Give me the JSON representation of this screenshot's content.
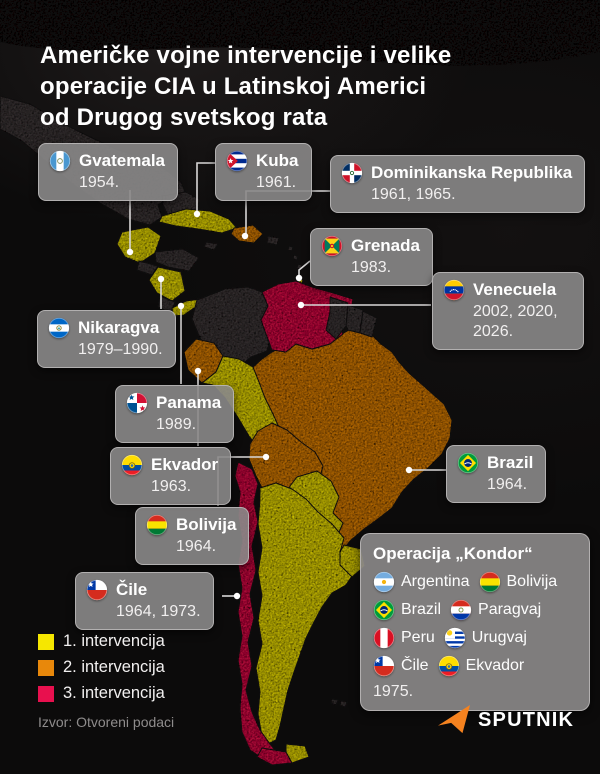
{
  "title": {
    "lines": [
      "Američke vojne intervencije i velike",
      "operacije CIA u Latinskoj Americi",
      "od Drugog svetskog rata"
    ]
  },
  "labels": [
    {
      "id": "gvatemala",
      "country": "Gvatemala",
      "years": "1954.",
      "flag": "gt"
    },
    {
      "id": "kuba",
      "country": "Kuba",
      "years": "1961.",
      "flag": "cu"
    },
    {
      "id": "dominikanska",
      "country": "Dominikanska Republika",
      "years": "1961, 1965.",
      "flag": "do"
    },
    {
      "id": "grenada",
      "country": "Grenada",
      "years": "1983.",
      "flag": "gd"
    },
    {
      "id": "venecuela",
      "country": "Venecuela",
      "years": "2002, 2020, 2026.",
      "flag": "ve"
    },
    {
      "id": "nikaragva",
      "country": "Nikaragva",
      "years": "1979–1990.",
      "flag": "ni"
    },
    {
      "id": "panama",
      "country": "Panama",
      "years": "1989.",
      "flag": "pa"
    },
    {
      "id": "ekvador",
      "country": "Ekvador",
      "years": "1963.",
      "flag": "ec"
    },
    {
      "id": "bolivija",
      "country": "Bolivija",
      "years": "1964.",
      "flag": "bo"
    },
    {
      "id": "brazil",
      "country": "Brazil",
      "years": "1964.",
      "flag": "br"
    },
    {
      "id": "cile",
      "country": "Čile",
      "years": "1964, 1973.",
      "flag": "cl"
    }
  ],
  "kondor": {
    "title": "Operacija „Kondor“",
    "year": "1975.",
    "countries": [
      {
        "name": "Argentina",
        "flag": "ar"
      },
      {
        "name": "Bolivija",
        "flag": "bo"
      },
      {
        "name": "Brazil",
        "flag": "br"
      },
      {
        "name": "Paragvaj",
        "flag": "py"
      },
      {
        "name": "Peru",
        "flag": "pe"
      },
      {
        "name": "Urugvaj",
        "flag": "uy"
      },
      {
        "name": "Čile",
        "flag": "cl"
      },
      {
        "name": "Ekvador",
        "flag": "ec"
      }
    ]
  },
  "legend": {
    "items": [
      {
        "label": "1. intervencija",
        "color": "#f6e700"
      },
      {
        "label": "2. intervencija",
        "color": "#e8880b"
      },
      {
        "label": "3. intervencija",
        "color": "#e8104e"
      }
    ]
  },
  "map": {
    "intervention_colors": {
      "1": "#f6e700",
      "2": "#e8880b",
      "3": "#e8104e",
      "other": "#453e3f"
    },
    "countries": [
      {
        "key": "gvatemala",
        "name": "Gvatemala",
        "level": "1"
      },
      {
        "key": "kuba",
        "name": "Kuba",
        "level": "1"
      },
      {
        "key": "dominikanska",
        "name": "Dominikanska Republika",
        "level": "2"
      },
      {
        "key": "grenada",
        "name": "Grenada",
        "level": "1"
      },
      {
        "key": "venecuela",
        "name": "Venecuela",
        "level": "3"
      },
      {
        "key": "nikaragva",
        "name": "Nikaragva",
        "level": "1"
      },
      {
        "key": "panama",
        "name": "Panama",
        "level": "1"
      },
      {
        "key": "ekvador",
        "name": "Ekvador",
        "level": "2"
      },
      {
        "key": "peru",
        "name": "Peru",
        "level": "1"
      },
      {
        "key": "bolivija",
        "name": "Bolivija",
        "level": "2"
      },
      {
        "key": "brazil",
        "name": "Brazil",
        "level": "2"
      },
      {
        "key": "paragvaj",
        "name": "Paragvaj",
        "level": "1"
      },
      {
        "key": "cile",
        "name": "Čile",
        "level": "3"
      },
      {
        "key": "argentina",
        "name": "Argentina",
        "level": "1"
      },
      {
        "key": "urugvaj",
        "name": "Urugvaj",
        "level": "1"
      },
      {
        "key": "tdf-cile",
        "name": "Čile (Ognjena zemlja)",
        "level": "3"
      },
      {
        "key": "tdf-argentina",
        "name": "Argentina (Ognjena zemlja)",
        "level": "1"
      }
    ]
  },
  "source": "Izvor: Otvoreni podaci",
  "logo": {
    "text": "SPUTNIK"
  }
}
